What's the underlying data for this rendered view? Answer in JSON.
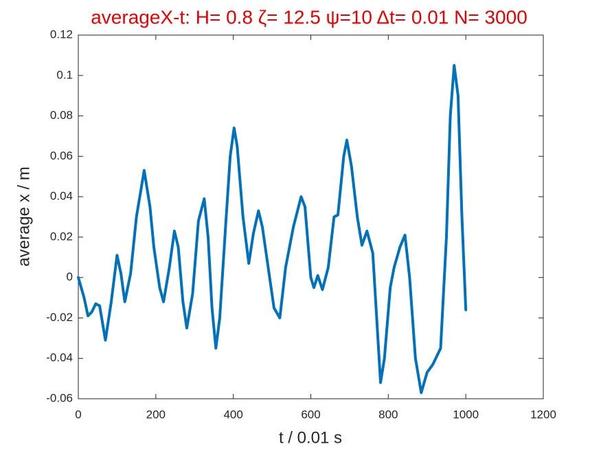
{
  "chart_data": {
    "type": "line",
    "title": "averageX-t:  H= 0.8 ζ= 12.5 ψ=10 Δt= 0.01 N= 3000",
    "x_label": "t / 0.01 s",
    "y_label": "average x / m",
    "x": [
      0,
      15,
      25,
      35,
      45,
      55,
      70,
      85,
      100,
      110,
      120,
      135,
      150,
      170,
      185,
      195,
      210,
      220,
      235,
      248,
      258,
      270,
      280,
      295,
      310,
      325,
      335,
      345,
      355,
      365,
      380,
      392,
      402,
      410,
      425,
      440,
      452,
      465,
      475,
      490,
      505,
      520,
      535,
      555,
      575,
      585,
      600,
      608,
      618,
      630,
      645,
      660,
      670,
      685,
      693,
      705,
      720,
      732,
      745,
      760,
      770,
      780,
      790,
      805,
      815,
      830,
      843,
      855,
      870,
      885,
      900,
      915,
      935,
      950,
      960,
      970,
      980,
      990,
      1000
    ],
    "series": [
      {
        "name": "averageX",
        "color": "#0072bd",
        "values": [
          0,
          -0.01,
          -0.019,
          -0.017,
          -0.013,
          -0.014,
          -0.031,
          -0.012,
          0.011,
          0.002,
          -0.012,
          0.002,
          0.03,
          0.053,
          0.035,
          0.015,
          -0.005,
          -0.012,
          0.005,
          0.023,
          0.015,
          -0.012,
          -0.025,
          -0.008,
          0.028,
          0.039,
          0.02,
          -0.015,
          -0.035,
          -0.02,
          0.025,
          0.06,
          0.074,
          0.065,
          0.03,
          0.007,
          0.022,
          0.033,
          0.025,
          0.005,
          -0.015,
          -0.02,
          0.005,
          0.025,
          0.04,
          0.035,
          0.0,
          -0.005,
          0.001,
          -0.006,
          0.005,
          0.03,
          0.031,
          0.06,
          0.068,
          0.055,
          0.03,
          0.016,
          0.023,
          0.012,
          -0.02,
          -0.052,
          -0.04,
          -0.005,
          0.005,
          0.015,
          0.021,
          0.0,
          -0.04,
          -0.057,
          -0.047,
          -0.043,
          -0.035,
          0.02,
          0.08,
          0.105,
          0.09,
          0.03,
          -0.016
        ]
      }
    ],
    "xlim": [
      0,
      1200
    ],
    "xticks": [
      0,
      200,
      400,
      600,
      800,
      1000,
      1200
    ],
    "ylim": [
      -0.06,
      0.12
    ],
    "yticks": [
      -0.06,
      -0.04,
      -0.02,
      0,
      0.02,
      0.04,
      0.06,
      0.08,
      0.1,
      0.12
    ],
    "grid": false
  }
}
